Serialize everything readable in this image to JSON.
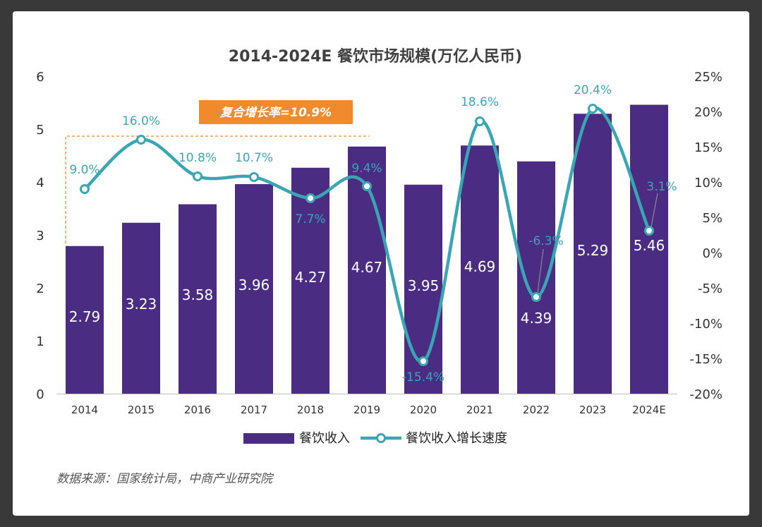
{
  "chart_data": {
    "type": "bar+line",
    "title": "2014-2024E 餐饮市场规模(万亿人民币)",
    "categories": [
      "2014",
      "2015",
      "2016",
      "2017",
      "2018",
      "2019",
      "2020",
      "2021",
      "2022",
      "2023",
      "2024E"
    ],
    "series": [
      {
        "name": "餐饮收入",
        "type": "bar",
        "axis": "left",
        "color": "#4a2c82",
        "values": [
          2.79,
          3.23,
          3.58,
          3.96,
          4.27,
          4.67,
          3.95,
          4.69,
          4.39,
          5.29,
          5.46
        ],
        "labels": [
          "2.79",
          "3.23",
          "3.58",
          "3.96",
          "4.27",
          "4.67",
          "3.95",
          "4.69",
          "4.39",
          "5.29",
          "5.46"
        ]
      },
      {
        "name": "餐饮收入增长速度",
        "type": "line",
        "axis": "right",
        "color": "#3aa6b4",
        "values": [
          9.0,
          16.0,
          10.8,
          10.7,
          7.7,
          9.4,
          -15.4,
          18.6,
          -6.3,
          20.4,
          3.1
        ],
        "labels": [
          "9.0%",
          "16.0%",
          "10.8%",
          "10.7%",
          "7.7%",
          "9.4%",
          "-15.4%",
          "18.6%",
          "-6.3%",
          "20.4%",
          "3.1%"
        ]
      }
    ],
    "y_left": {
      "min": 0,
      "max": 6,
      "ticks": [
        "0",
        "1",
        "2",
        "3",
        "4",
        "5",
        "6"
      ]
    },
    "y_right": {
      "min": -20,
      "max": 25,
      "ticks": [
        "-20%",
        "-15%",
        "-10%",
        "-5%",
        "0%",
        "5%",
        "10%",
        "15%",
        "20%",
        "25%"
      ]
    },
    "grid": false,
    "legend": "bottom-center",
    "annotation": {
      "text": "复合增长率=10.9%",
      "color": "#f08a2c"
    }
  },
  "source": "数据来源：国家统计局，中商产业研究院"
}
